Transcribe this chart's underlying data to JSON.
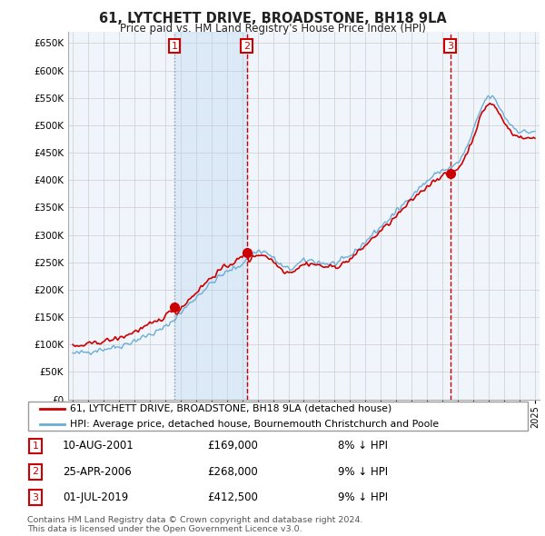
{
  "title": "61, LYTCHETT DRIVE, BROADSTONE, BH18 9LA",
  "subtitle": "Price paid vs. HM Land Registry's House Price Index (HPI)",
  "property_label": "61, LYTCHETT DRIVE, BROADSTONE, BH18 9LA (detached house)",
  "hpi_label": "HPI: Average price, detached house, Bournemouth Christchurch and Poole",
  "footer": "Contains HM Land Registry data © Crown copyright and database right 2024.\nThis data is licensed under the Open Government Licence v3.0.",
  "transactions": [
    {
      "num": 1,
      "date": "10-AUG-2001",
      "price": 169000,
      "pct": "8%",
      "dir": "↓"
    },
    {
      "num": 2,
      "date": "25-APR-2006",
      "price": 268000,
      "pct": "9%",
      "dir": "↓"
    },
    {
      "num": 3,
      "date": "01-JUL-2019",
      "price": 412500,
      "pct": "9%",
      "dir": "↓"
    }
  ],
  "transaction_years": [
    2001.6,
    2006.3,
    2019.5
  ],
  "transaction_prices": [
    169000,
    268000,
    412500
  ],
  "ylim": [
    0,
    670000
  ],
  "ytick_values": [
    0,
    50000,
    100000,
    150000,
    200000,
    250000,
    300000,
    350000,
    400000,
    450000,
    500000,
    550000,
    600000,
    650000
  ],
  "property_color": "#cc0000",
  "hpi_color": "#6baed6",
  "hpi_fill_color": "#d6e8f5",
  "shade_color": "#ddeeff",
  "grid_color": "#cccccc",
  "background_color": "#ffffff",
  "note_1_color": "#888888",
  "seed": 42,
  "hpi_monthly_years": [
    1995.0,
    1995.083,
    1995.167,
    1995.25,
    1995.333,
    1995.417,
    1995.5,
    1995.583,
    1995.667,
    1995.75,
    1995.833,
    1995.917,
    1996.0,
    1996.083,
    1996.167,
    1996.25,
    1996.333,
    1996.417,
    1996.5,
    1996.583,
    1996.667,
    1996.75,
    1996.833,
    1996.917,
    1997.0,
    1997.083,
    1997.167,
    1997.25,
    1997.333,
    1997.417,
    1997.5,
    1997.583,
    1997.667,
    1997.75,
    1997.833,
    1997.917,
    1998.0,
    1998.083,
    1998.167,
    1998.25,
    1998.333,
    1998.417,
    1998.5,
    1998.583,
    1998.667,
    1998.75,
    1998.833,
    1998.917,
    1999.0,
    1999.083,
    1999.167,
    1999.25,
    1999.333,
    1999.417,
    1999.5,
    1999.583,
    1999.667,
    1999.75,
    1999.833,
    1999.917,
    2000.0,
    2000.083,
    2000.167,
    2000.25,
    2000.333,
    2000.417,
    2000.5,
    2000.583,
    2000.667,
    2000.75,
    2000.833,
    2000.917,
    2001.0,
    2001.083,
    2001.167,
    2001.25,
    2001.333,
    2001.417,
    2001.5,
    2001.583,
    2001.667,
    2001.75,
    2001.833,
    2001.917,
    2002.0,
    2002.083,
    2002.167,
    2002.25,
    2002.333,
    2002.417,
    2002.5,
    2002.583,
    2002.667,
    2002.75,
    2002.833,
    2002.917,
    2003.0,
    2003.083,
    2003.167,
    2003.25,
    2003.333,
    2003.417,
    2003.5,
    2003.583,
    2003.667,
    2003.75,
    2003.833,
    2003.917,
    2004.0,
    2004.083,
    2004.167,
    2004.25,
    2004.333,
    2004.417,
    2004.5,
    2004.583,
    2004.667,
    2004.75,
    2004.833,
    2004.917,
    2005.0,
    2005.083,
    2005.167,
    2005.25,
    2005.333,
    2005.417,
    2005.5,
    2005.583,
    2005.667,
    2005.75,
    2005.833,
    2005.917,
    2006.0,
    2006.083,
    2006.167,
    2006.25,
    2006.333,
    2006.417,
    2006.5,
    2006.583,
    2006.667,
    2006.75,
    2006.833,
    2006.917,
    2007.0,
    2007.083,
    2007.167,
    2007.25,
    2007.333,
    2007.417,
    2007.5,
    2007.583,
    2007.667,
    2007.75,
    2007.833,
    2007.917,
    2008.0,
    2008.083,
    2008.167,
    2008.25,
    2008.333,
    2008.417,
    2008.5,
    2008.583,
    2008.667,
    2008.75,
    2008.833,
    2008.917,
    2009.0,
    2009.083,
    2009.167,
    2009.25,
    2009.333,
    2009.417,
    2009.5,
    2009.583,
    2009.667,
    2009.75,
    2009.833,
    2009.917,
    2010.0,
    2010.083,
    2010.167,
    2010.25,
    2010.333,
    2010.417,
    2010.5,
    2010.583,
    2010.667,
    2010.75,
    2010.833,
    2010.917,
    2011.0,
    2011.083,
    2011.167,
    2011.25,
    2011.333,
    2011.417,
    2011.5,
    2011.583,
    2011.667,
    2011.75,
    2011.833,
    2011.917,
    2012.0,
    2012.083,
    2012.167,
    2012.25,
    2012.333,
    2012.417,
    2012.5,
    2012.583,
    2012.667,
    2012.75,
    2012.833,
    2012.917,
    2013.0,
    2013.083,
    2013.167,
    2013.25,
    2013.333,
    2013.417,
    2013.5,
    2013.583,
    2013.667,
    2013.75,
    2013.833,
    2013.917,
    2014.0,
    2014.083,
    2014.167,
    2014.25,
    2014.333,
    2014.417,
    2014.5,
    2014.583,
    2014.667,
    2014.75,
    2014.833,
    2014.917,
    2015.0,
    2015.083,
    2015.167,
    2015.25,
    2015.333,
    2015.417,
    2015.5,
    2015.583,
    2015.667,
    2015.75,
    2015.833,
    2015.917,
    2016.0,
    2016.083,
    2016.167,
    2016.25,
    2016.333,
    2016.417,
    2016.5,
    2016.583,
    2016.667,
    2016.75,
    2016.833,
    2016.917,
    2017.0,
    2017.083,
    2017.167,
    2017.25,
    2017.333,
    2017.417,
    2017.5,
    2017.583,
    2017.667,
    2017.75,
    2017.833,
    2017.917,
    2018.0,
    2018.083,
    2018.167,
    2018.25,
    2018.333,
    2018.417,
    2018.5,
    2018.583,
    2018.667,
    2018.75,
    2018.833,
    2018.917,
    2019.0,
    2019.083,
    2019.167,
    2019.25,
    2019.333,
    2019.417,
    2019.5,
    2019.583,
    2019.667,
    2019.75,
    2019.833,
    2019.917,
    2020.0,
    2020.083,
    2020.167,
    2020.25,
    2020.333,
    2020.417,
    2020.5,
    2020.583,
    2020.667,
    2020.75,
    2020.833,
    2020.917,
    2021.0,
    2021.083,
    2021.167,
    2021.25,
    2021.333,
    2021.417,
    2021.5,
    2021.583,
    2021.667,
    2021.75,
    2021.833,
    2021.917,
    2022.0,
    2022.083,
    2022.167,
    2022.25,
    2022.333,
    2022.417,
    2022.5,
    2022.583,
    2022.667,
    2022.75,
    2022.833,
    2022.917,
    2023.0,
    2023.083,
    2023.167,
    2023.25,
    2023.333,
    2023.417,
    2023.5,
    2023.583,
    2023.667,
    2023.75,
    2023.833,
    2023.917,
    2024.0,
    2024.083,
    2024.167,
    2024.25,
    2024.333,
    2024.417,
    2024.5,
    2024.583,
    2024.667,
    2024.75,
    2024.833,
    2024.917,
    2025.0
  ]
}
